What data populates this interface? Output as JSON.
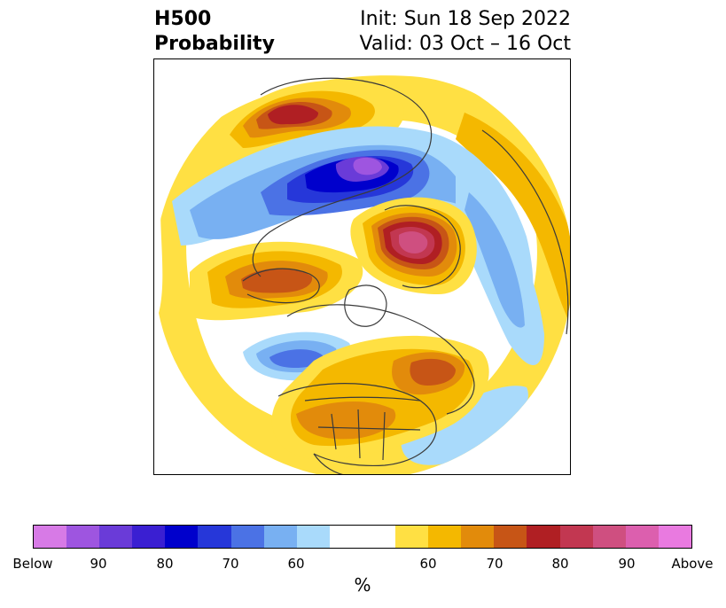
{
  "title": {
    "left_line1": "H500",
    "left_line2": "Probability",
    "right_line1": "Init: Sun 18 Sep 2022",
    "right_line2": "Valid: 03 Oct – 16 Oct"
  },
  "colorbar": {
    "unit": "%",
    "segments": [
      "#d77ae6",
      "#9e55e0",
      "#6a3bd8",
      "#3a1fd2",
      "#0000cc",
      "#2637d9",
      "#4b72e5",
      "#78b0f2",
      "#a9dafb",
      "#ffffff",
      "#ffe043",
      "#f4b800",
      "#e28b0b",
      "#c75516",
      "#b01f23",
      "#c23751",
      "#cf4f80",
      "#dc5fae",
      "#e97ae0"
    ],
    "ticks": [
      "Below",
      "90",
      "80",
      "70",
      "60",
      "60",
      "70",
      "80",
      "90",
      "Above"
    ]
  },
  "map": {
    "colors": {
      "warm1": "#ffe043",
      "warm2": "#f4b800",
      "warm3": "#e28b0b",
      "warm4": "#c75516",
      "warm5": "#b01f23",
      "warm6": "#c23751",
      "warm7": "#cf4f80",
      "cold1": "#a9dafb",
      "cold2": "#78b0f2",
      "cold3": "#4b72e5",
      "cold4": "#2637d9",
      "cold5": "#0000cc",
      "cold6": "#6a3bd8",
      "cold7": "#9e55e0",
      "coast": "#3a3a3a"
    }
  }
}
